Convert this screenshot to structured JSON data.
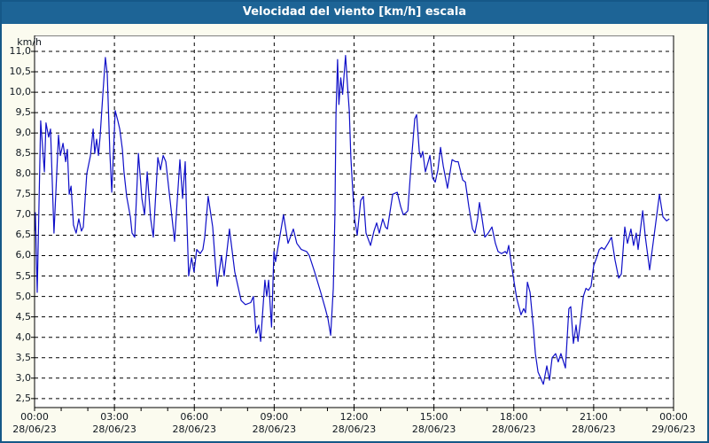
{
  "title": "Velocidad del viento [km/h] escala",
  "colors": {
    "title_bar": "#1D6496",
    "title_text": "#FFFFFF",
    "window_border": "#155888",
    "background": "#FBFBEF",
    "plot_background": "#FFFFFF",
    "grid": "#000000",
    "line": "#0F0FC8",
    "text": "#10181F"
  },
  "chart_data": {
    "type": "line",
    "title": "Velocidad del viento [km/h] escala",
    "ylabel": "km/h",
    "xlabel": "",
    "grid": "dashed",
    "legend": "none",
    "xlim_hours": [
      0,
      24
    ],
    "ylim": [
      2.28,
      11.39
    ],
    "yticks": [
      {
        "value": 2.5,
        "label": "2,5"
      },
      {
        "value": 3.0,
        "label": "3,0"
      },
      {
        "value": 3.5,
        "label": "3,5"
      },
      {
        "value": 4.0,
        "label": "4,0"
      },
      {
        "value": 4.5,
        "label": "4,5"
      },
      {
        "value": 5.0,
        "label": "5,0"
      },
      {
        "value": 5.5,
        "label": "5,5"
      },
      {
        "value": 6.0,
        "label": "6,0"
      },
      {
        "value": 6.5,
        "label": "6,5"
      },
      {
        "value": 7.0,
        "label": "7,0"
      },
      {
        "value": 7.5,
        "label": "7,5"
      },
      {
        "value": 8.0,
        "label": "8,0"
      },
      {
        "value": 8.5,
        "label": "8,5"
      },
      {
        "value": 9.0,
        "label": "9,0"
      },
      {
        "value": 9.5,
        "label": "9,5"
      },
      {
        "value": 10.0,
        "label": "10,0"
      },
      {
        "value": 10.5,
        "label": "10,5"
      },
      {
        "value": 11.0,
        "label": "11,0"
      }
    ],
    "xticks": [
      {
        "hour": 0,
        "time": "00:00",
        "date": "28/06/23"
      },
      {
        "hour": 3,
        "time": "03:00",
        "date": "28/06/23"
      },
      {
        "hour": 6,
        "time": "06:00",
        "date": "28/06/23"
      },
      {
        "hour": 9,
        "time": "09:00",
        "date": "28/06/23"
      },
      {
        "hour": 12,
        "time": "12:00",
        "date": "28/06/23"
      },
      {
        "hour": 15,
        "time": "15:00",
        "date": "28/06/23"
      },
      {
        "hour": 18,
        "time": "18:00",
        "date": "28/06/23"
      },
      {
        "hour": 21,
        "time": "21:00",
        "date": "28/06/23"
      },
      {
        "hour": 24,
        "time": "00:00",
        "date": "29/06/23"
      }
    ],
    "series": [
      {
        "name": "Velocidad del viento",
        "unit": "km/h",
        "color": "#0F0FC8",
        "points": [
          [
            0.0,
            6.6
          ],
          [
            0.03,
            7.05
          ],
          [
            0.1,
            5.1
          ],
          [
            0.23,
            9.3
          ],
          [
            0.37,
            8.05
          ],
          [
            0.43,
            9.25
          ],
          [
            0.53,
            8.9
          ],
          [
            0.6,
            9.1
          ],
          [
            0.73,
            6.55
          ],
          [
            0.9,
            8.95
          ],
          [
            0.97,
            8.45
          ],
          [
            1.07,
            8.75
          ],
          [
            1.17,
            8.3
          ],
          [
            1.23,
            8.6
          ],
          [
            1.3,
            7.5
          ],
          [
            1.37,
            7.7
          ],
          [
            1.46,
            6.75
          ],
          [
            1.56,
            6.55
          ],
          [
            1.66,
            6.9
          ],
          [
            1.76,
            6.6
          ],
          [
            1.83,
            6.7
          ],
          [
            1.9,
            7.4
          ],
          [
            1.96,
            8.0
          ],
          [
            2.1,
            8.45
          ],
          [
            2.2,
            9.1
          ],
          [
            2.26,
            8.5
          ],
          [
            2.33,
            8.85
          ],
          [
            2.4,
            8.45
          ],
          [
            2.46,
            8.9
          ],
          [
            2.56,
            9.9
          ],
          [
            2.66,
            10.85
          ],
          [
            2.73,
            10.45
          ],
          [
            2.83,
            8.5
          ],
          [
            2.9,
            7.55
          ],
          [
            3.03,
            9.55
          ],
          [
            3.13,
            9.3
          ],
          [
            3.2,
            9.1
          ],
          [
            3.3,
            8.6
          ],
          [
            3.36,
            8.05
          ],
          [
            3.46,
            7.45
          ],
          [
            3.6,
            6.95
          ],
          [
            3.66,
            6.55
          ],
          [
            3.76,
            6.45
          ],
          [
            3.9,
            8.5
          ],
          [
            4.03,
            7.4
          ],
          [
            4.13,
            7.0
          ],
          [
            4.23,
            8.05
          ],
          [
            4.36,
            6.9
          ],
          [
            4.46,
            6.45
          ],
          [
            4.63,
            8.4
          ],
          [
            4.73,
            8.1
          ],
          [
            4.83,
            8.45
          ],
          [
            4.93,
            8.3
          ],
          [
            5.1,
            7.3
          ],
          [
            5.26,
            6.35
          ],
          [
            5.46,
            8.35
          ],
          [
            5.56,
            7.4
          ],
          [
            5.66,
            8.3
          ],
          [
            5.7,
            7.3
          ],
          [
            5.79,
            5.5
          ],
          [
            5.9,
            5.95
          ],
          [
            5.99,
            5.6
          ],
          [
            6.09,
            6.15
          ],
          [
            6.22,
            6.05
          ],
          [
            6.32,
            6.15
          ],
          [
            6.39,
            6.45
          ],
          [
            6.52,
            7.45
          ],
          [
            6.69,
            6.7
          ],
          [
            6.79,
            5.8
          ],
          [
            6.86,
            5.25
          ],
          [
            7.02,
            6.0
          ],
          [
            7.12,
            5.5
          ],
          [
            7.32,
            6.65
          ],
          [
            7.52,
            5.6
          ],
          [
            7.76,
            4.9
          ],
          [
            7.92,
            4.8
          ],
          [
            8.12,
            4.85
          ],
          [
            8.22,
            5.0
          ],
          [
            8.32,
            4.1
          ],
          [
            8.42,
            4.3
          ],
          [
            8.49,
            3.9
          ],
          [
            8.65,
            5.4
          ],
          [
            8.72,
            5.0
          ],
          [
            8.79,
            5.4
          ],
          [
            8.9,
            4.25
          ],
          [
            8.99,
            6.1
          ],
          [
            9.05,
            5.85
          ],
          [
            9.35,
            7.0
          ],
          [
            9.52,
            6.3
          ],
          [
            9.72,
            6.65
          ],
          [
            9.85,
            6.3
          ],
          [
            10.02,
            6.15
          ],
          [
            10.22,
            6.1
          ],
          [
            10.32,
            6.0
          ],
          [
            10.52,
            5.6
          ],
          [
            10.75,
            5.1
          ],
          [
            10.92,
            4.7
          ],
          [
            11.02,
            4.45
          ],
          [
            11.12,
            4.05
          ],
          [
            11.22,
            5.2
          ],
          [
            11.28,
            7.0
          ],
          [
            11.32,
            9.45
          ],
          [
            11.38,
            10.8
          ],
          [
            11.43,
            9.7
          ],
          [
            11.5,
            10.35
          ],
          [
            11.57,
            9.95
          ],
          [
            11.68,
            10.9
          ],
          [
            11.75,
            10.2
          ],
          [
            11.82,
            9.55
          ],
          [
            11.88,
            8.4
          ],
          [
            11.95,
            7.6
          ],
          [
            12.02,
            6.9
          ],
          [
            12.12,
            6.5
          ],
          [
            12.25,
            7.35
          ],
          [
            12.35,
            7.45
          ],
          [
            12.45,
            6.55
          ],
          [
            12.62,
            6.25
          ],
          [
            12.75,
            6.6
          ],
          [
            12.85,
            6.8
          ],
          [
            12.95,
            6.55
          ],
          [
            13.08,
            6.9
          ],
          [
            13.18,
            6.7
          ],
          [
            13.25,
            6.65
          ],
          [
            13.45,
            7.5
          ],
          [
            13.62,
            7.55
          ],
          [
            13.75,
            7.2
          ],
          [
            13.85,
            7.0
          ],
          [
            13.95,
            7.05
          ],
          [
            14.02,
            7.1
          ],
          [
            14.15,
            8.3
          ],
          [
            14.28,
            9.35
          ],
          [
            14.35,
            9.45
          ],
          [
            14.45,
            8.55
          ],
          [
            14.51,
            8.4
          ],
          [
            14.58,
            8.55
          ],
          [
            14.68,
            8.05
          ],
          [
            14.85,
            8.45
          ],
          [
            14.95,
            7.9
          ],
          [
            15.05,
            7.8
          ],
          [
            15.15,
            8.1
          ],
          [
            15.25,
            8.65
          ],
          [
            15.35,
            8.2
          ],
          [
            15.51,
            7.65
          ],
          [
            15.68,
            8.35
          ],
          [
            15.81,
            8.3
          ],
          [
            15.91,
            8.3
          ],
          [
            16.08,
            7.85
          ],
          [
            16.18,
            7.8
          ],
          [
            16.31,
            7.2
          ],
          [
            16.45,
            6.65
          ],
          [
            16.54,
            6.55
          ],
          [
            16.64,
            6.9
          ],
          [
            16.71,
            7.3
          ],
          [
            16.81,
            6.9
          ],
          [
            16.91,
            6.45
          ],
          [
            17.04,
            6.55
          ],
          [
            17.18,
            6.7
          ],
          [
            17.31,
            6.3
          ],
          [
            17.41,
            6.1
          ],
          [
            17.54,
            6.05
          ],
          [
            17.68,
            6.1
          ],
          [
            17.74,
            6.05
          ],
          [
            17.81,
            6.25
          ],
          [
            17.91,
            5.8
          ],
          [
            18.01,
            5.35
          ],
          [
            18.11,
            4.95
          ],
          [
            18.27,
            4.55
          ],
          [
            18.37,
            4.7
          ],
          [
            18.44,
            4.6
          ],
          [
            18.51,
            5.35
          ],
          [
            18.61,
            5.1
          ],
          [
            18.74,
            4.2
          ],
          [
            18.81,
            3.6
          ],
          [
            18.91,
            3.15
          ],
          [
            19.01,
            3.0
          ],
          [
            19.11,
            2.85
          ],
          [
            19.24,
            3.3
          ],
          [
            19.34,
            2.95
          ],
          [
            19.44,
            3.5
          ],
          [
            19.57,
            3.6
          ],
          [
            19.67,
            3.4
          ],
          [
            19.77,
            3.6
          ],
          [
            19.94,
            3.25
          ],
          [
            20.07,
            4.7
          ],
          [
            20.14,
            4.75
          ],
          [
            20.24,
            3.85
          ],
          [
            20.34,
            4.3
          ],
          [
            20.41,
            3.9
          ],
          [
            20.54,
            4.6
          ],
          [
            20.61,
            5.0
          ],
          [
            20.71,
            5.2
          ],
          [
            20.8,
            5.15
          ],
          [
            20.9,
            5.25
          ],
          [
            21.0,
            5.75
          ],
          [
            21.11,
            5.95
          ],
          [
            21.21,
            6.15
          ],
          [
            21.3,
            6.2
          ],
          [
            21.4,
            6.15
          ],
          [
            21.54,
            6.3
          ],
          [
            21.67,
            6.45
          ],
          [
            21.8,
            5.9
          ],
          [
            21.94,
            5.45
          ],
          [
            22.04,
            5.55
          ],
          [
            22.17,
            6.7
          ],
          [
            22.27,
            6.3
          ],
          [
            22.4,
            6.65
          ],
          [
            22.5,
            6.25
          ],
          [
            22.6,
            6.55
          ],
          [
            22.67,
            6.15
          ],
          [
            22.84,
            7.1
          ],
          [
            22.94,
            6.45
          ],
          [
            23.1,
            5.65
          ],
          [
            23.27,
            6.5
          ],
          [
            23.47,
            7.5
          ],
          [
            23.6,
            6.95
          ],
          [
            23.74,
            6.85
          ],
          [
            23.84,
            6.9
          ]
        ]
      }
    ]
  }
}
